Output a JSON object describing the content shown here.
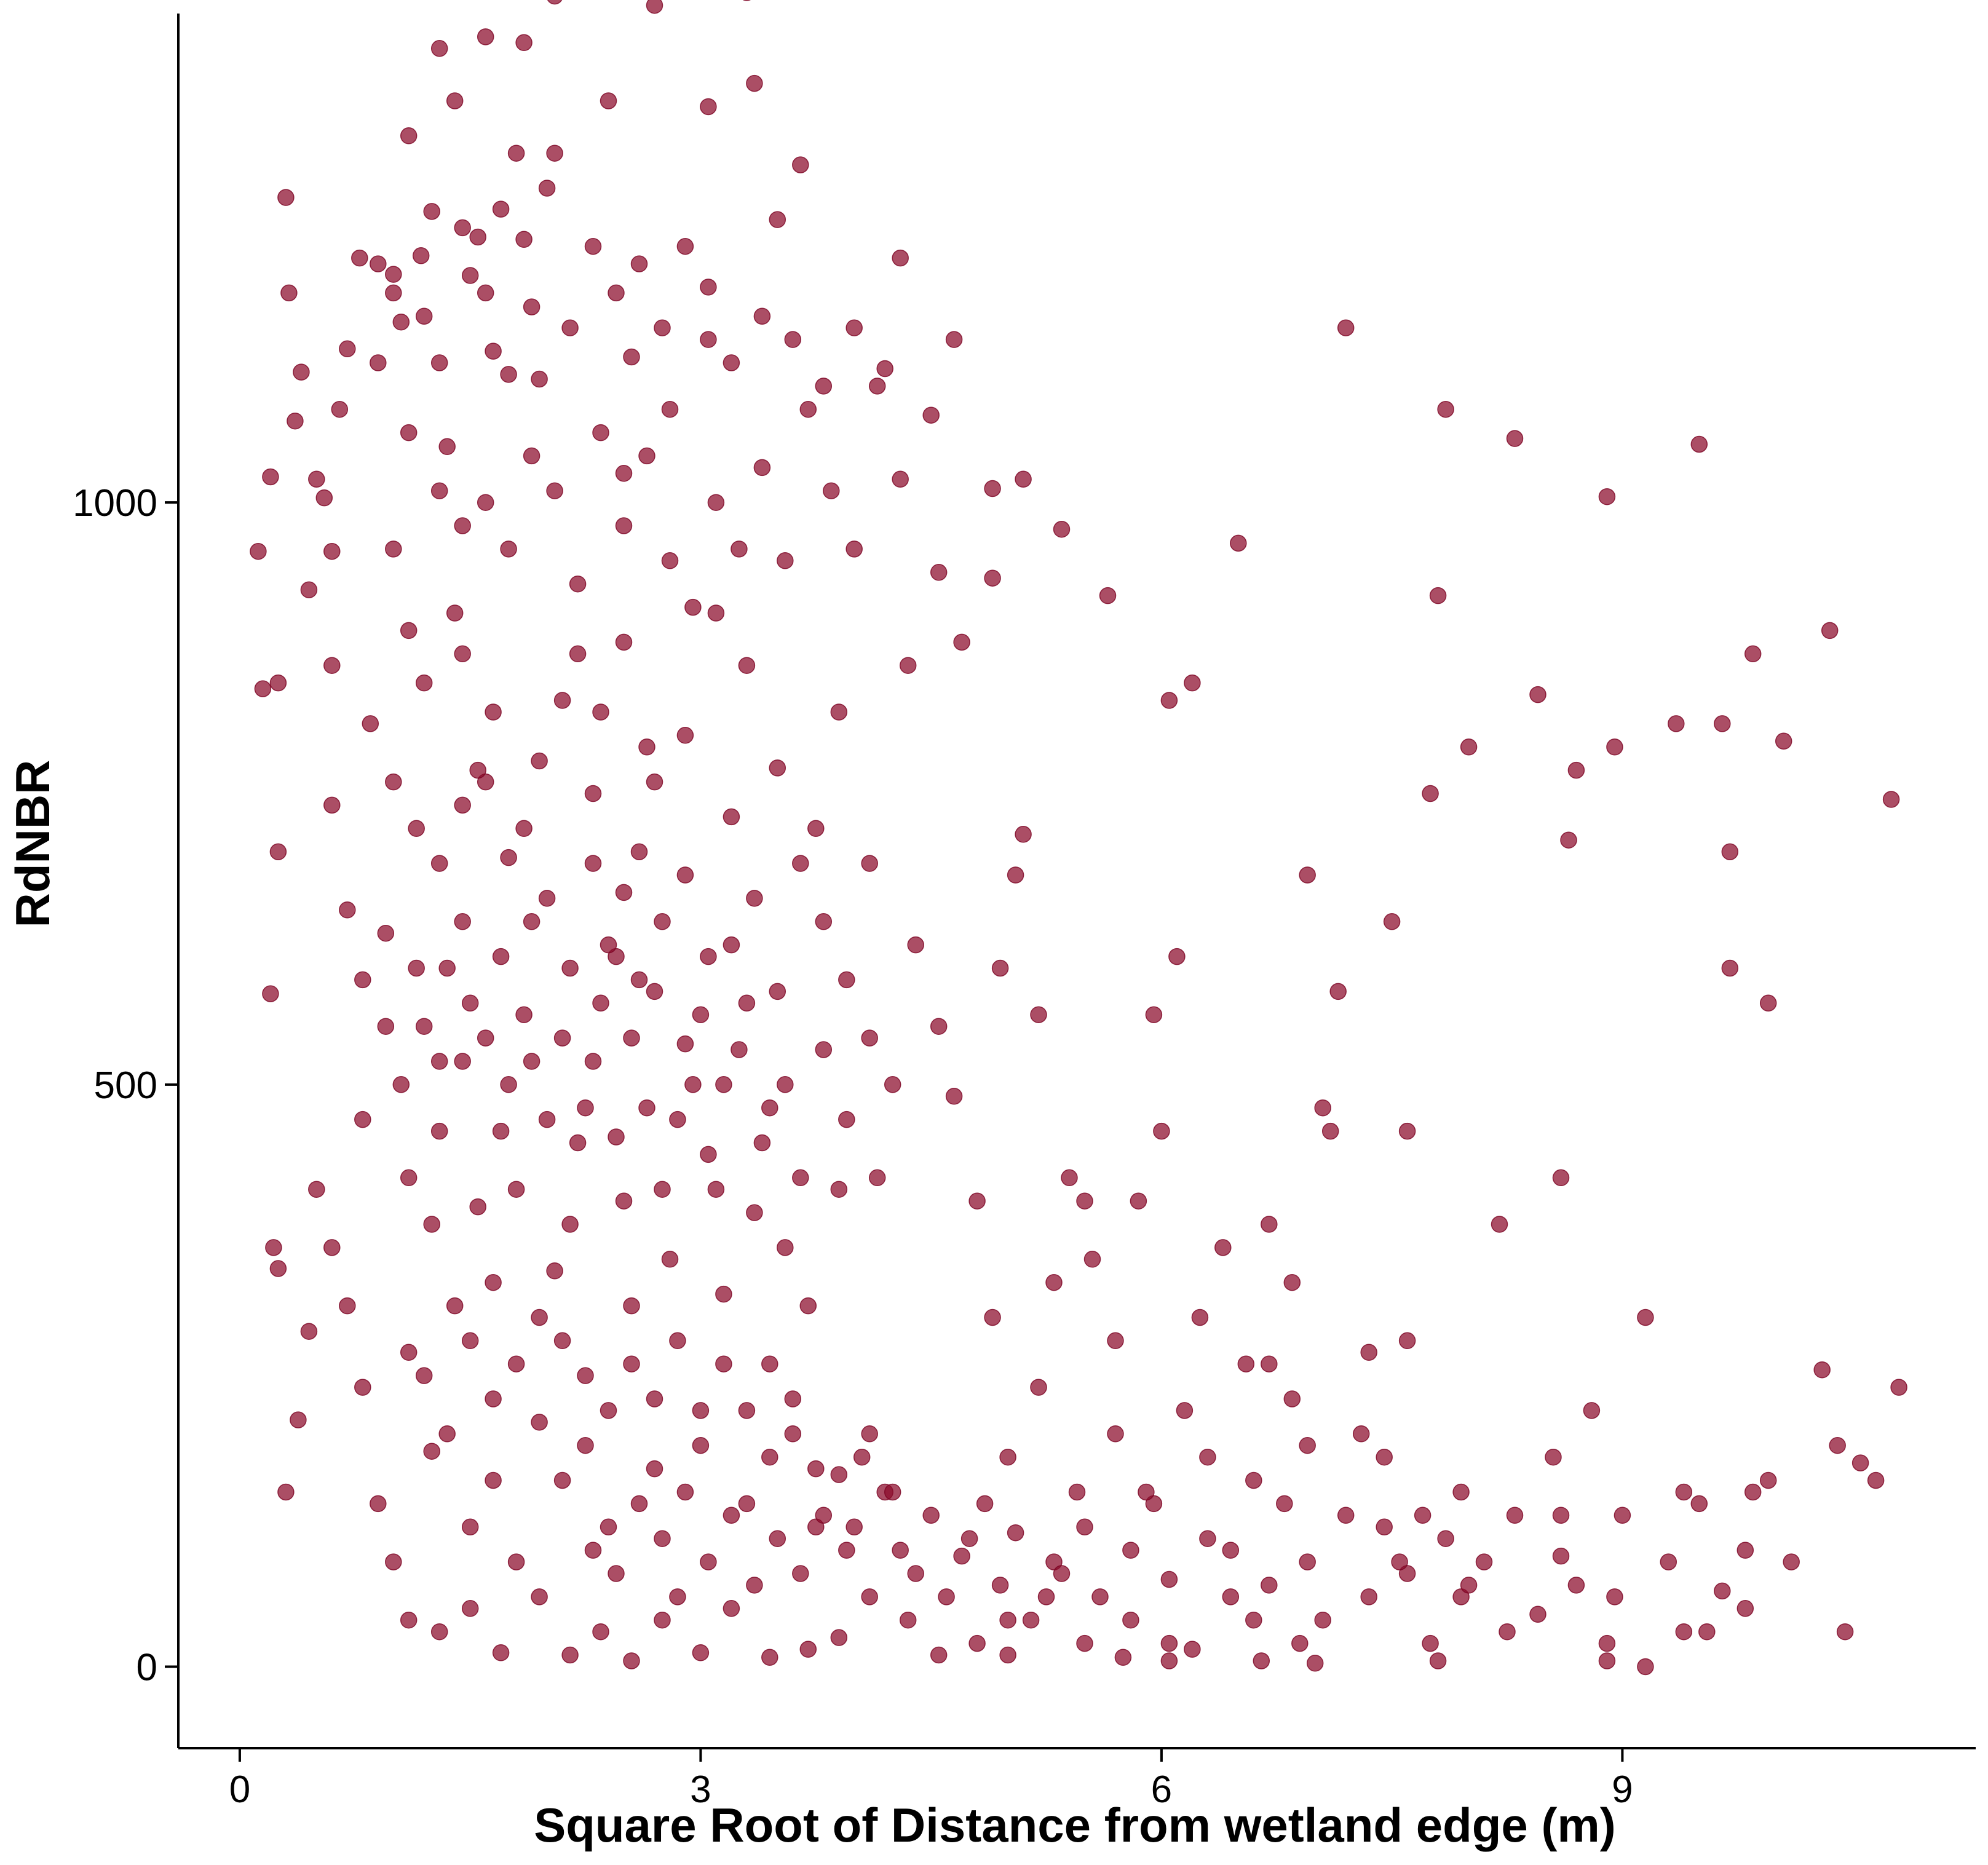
{
  "chart_data": {
    "type": "scatter",
    "xlabel": "Square Root of Distance from wetland edge (m)",
    "ylabel": "RdNBR",
    "xlim": [
      -0.4,
      11.3
    ],
    "ylim": [
      -70,
      1420
    ],
    "x_ticks": [
      0,
      3,
      6,
      9
    ],
    "y_ticks": [
      0,
      500,
      1000
    ],
    "grid": false,
    "legend": "none",
    "point_color": "#8B0A2A",
    "points": [
      [
        0.12,
        958
      ],
      [
        0.15,
        840
      ],
      [
        0.2,
        1022
      ],
      [
        0.25,
        845
      ],
      [
        0.3,
        1262
      ],
      [
        0.32,
        1180
      ],
      [
        0.36,
        1070
      ],
      [
        0.4,
        1112
      ],
      [
        0.45,
        925
      ],
      [
        0.5,
        1020
      ],
      [
        0.55,
        1004
      ],
      [
        0.6,
        958
      ],
      [
        0.25,
        700
      ],
      [
        0.2,
        578
      ],
      [
        0.22,
        360
      ],
      [
        0.25,
        342
      ],
      [
        0.3,
        150
      ],
      [
        0.38,
        212
      ],
      [
        0.45,
        288
      ],
      [
        0.5,
        410
      ],
      [
        0.6,
        860
      ],
      [
        0.65,
        1080
      ],
      [
        0.7,
        1132
      ],
      [
        0.78,
        1210
      ],
      [
        0.9,
        1205
      ],
      [
        1.0,
        1196
      ],
      [
        1.05,
        1155
      ],
      [
        1.1,
        1060
      ],
      [
        1.18,
        1212
      ],
      [
        1.25,
        1250
      ],
      [
        1.3,
        1120
      ],
      [
        1.35,
        1048
      ],
      [
        1.4,
        1345
      ],
      [
        1.45,
        1236
      ],
      [
        1.55,
        1228
      ],
      [
        1.6,
        1180
      ],
      [
        1.65,
        1130
      ],
      [
        1.7,
        1252
      ],
      [
        1.8,
        1300
      ],
      [
        1.85,
        1226
      ],
      [
        1.9,
        1168
      ],
      [
        1.95,
        1106
      ],
      [
        2.0,
        1270
      ],
      [
        2.05,
        1300
      ],
      [
        1.1,
        1315
      ],
      [
        1.3,
        1390
      ],
      [
        1.6,
        1400
      ],
      [
        1.85,
        1395
      ],
      [
        2.05,
        1435
      ],
      [
        2.4,
        1345
      ],
      [
        2.7,
        1427
      ],
      [
        2.8,
        1440
      ],
      [
        3.05,
        1340
      ],
      [
        3.3,
        1438
      ],
      [
        3.35,
        1360
      ],
      [
        3.65,
        1290
      ],
      [
        3.5,
        1243
      ],
      [
        4.3,
        1210
      ],
      [
        4.65,
        1140
      ],
      [
        4.5,
        1075
      ],
      [
        4.9,
        1012
      ],
      [
        5.1,
        1020
      ],
      [
        5.35,
        977
      ],
      [
        5.65,
        920
      ],
      [
        6.05,
        830
      ],
      [
        6.2,
        845
      ],
      [
        6.5,
        965
      ],
      [
        7.2,
        1150
      ],
      [
        0.9,
        1120
      ],
      [
        1.0,
        960
      ],
      [
        1.1,
        890
      ],
      [
        1.2,
        845
      ],
      [
        1.4,
        905
      ],
      [
        1.6,
        760
      ],
      [
        1.75,
        695
      ],
      [
        1.95,
        778
      ],
      [
        2.1,
        830
      ],
      [
        2.3,
        690
      ],
      [
        2.5,
        665
      ],
      [
        2.7,
        760
      ],
      [
        2.9,
        800
      ],
      [
        3.1,
        905
      ],
      [
        3.3,
        860
      ],
      [
        3.5,
        772
      ],
      [
        3.75,
        720
      ],
      [
        3.9,
        820
      ],
      [
        4.1,
        690
      ],
      [
        4.35,
        860
      ],
      [
        4.55,
        940
      ],
      [
        4.7,
        880
      ],
      [
        4.9,
        935
      ],
      [
        5.1,
        715
      ],
      [
        0.6,
        740
      ],
      [
        0.7,
        650
      ],
      [
        0.8,
        590
      ],
      [
        0.95,
        630
      ],
      [
        1.05,
        500
      ],
      [
        1.2,
        550
      ],
      [
        1.3,
        460
      ],
      [
        1.45,
        520
      ],
      [
        1.55,
        395
      ],
      [
        1.7,
        460
      ],
      [
        1.85,
        560
      ],
      [
        2.0,
        470
      ],
      [
        2.15,
        380
      ],
      [
        2.3,
        520
      ],
      [
        2.45,
        455
      ],
      [
        2.6,
        590
      ],
      [
        2.75,
        410
      ],
      [
        2.9,
        535
      ],
      [
        3.05,
        440
      ],
      [
        3.2,
        620
      ],
      [
        3.35,
        390
      ],
      [
        3.55,
        360
      ],
      [
        3.7,
        310
      ],
      [
        3.9,
        410
      ],
      [
        0.6,
        360
      ],
      [
        0.7,
        310
      ],
      [
        0.8,
        240
      ],
      [
        0.9,
        140
      ],
      [
        1.0,
        90
      ],
      [
        1.1,
        270
      ],
      [
        1.25,
        185
      ],
      [
        1.4,
        310
      ],
      [
        1.5,
        120
      ],
      [
        1.65,
        230
      ],
      [
        1.8,
        90
      ],
      [
        1.95,
        300
      ],
      [
        2.1,
        160
      ],
      [
        2.25,
        250
      ],
      [
        2.4,
        120
      ],
      [
        2.55,
        310
      ],
      [
        2.7,
        170
      ],
      [
        2.85,
        60
      ],
      [
        3.0,
        220
      ],
      [
        3.15,
        320
      ],
      [
        3.3,
        140
      ],
      [
        3.45,
        260
      ],
      [
        3.6,
        200
      ],
      [
        3.75,
        120
      ],
      [
        1.1,
        40
      ],
      [
        1.3,
        30
      ],
      [
        1.5,
        50
      ],
      [
        1.7,
        12
      ],
      [
        1.95,
        60
      ],
      [
        2.15,
        10
      ],
      [
        2.35,
        30
      ],
      [
        2.55,
        5
      ],
      [
        2.75,
        40
      ],
      [
        3.0,
        12
      ],
      [
        3.2,
        50
      ],
      [
        3.45,
        8
      ],
      [
        3.7,
        15
      ],
      [
        3.9,
        25
      ],
      [
        4.1,
        60
      ],
      [
        4.35,
        40
      ],
      [
        4.55,
        10
      ],
      [
        4.8,
        20
      ],
      [
        5.0,
        40
      ],
      [
        5.25,
        60
      ],
      [
        5.5,
        20
      ],
      [
        5.75,
        8
      ],
      [
        6.05,
        5
      ],
      [
        6.2,
        15
      ],
      [
        3.9,
        165
      ],
      [
        4.0,
        120
      ],
      [
        4.1,
        200
      ],
      [
        4.2,
        150
      ],
      [
        4.3,
        100
      ],
      [
        4.4,
        80
      ],
      [
        4.5,
        130
      ],
      [
        4.6,
        60
      ],
      [
        4.7,
        95
      ],
      [
        4.85,
        140
      ],
      [
        4.95,
        70
      ],
      [
        5.05,
        115
      ],
      [
        5.15,
        40
      ],
      [
        5.3,
        90
      ],
      [
        5.45,
        150
      ],
      [
        5.6,
        60
      ],
      [
        5.7,
        200
      ],
      [
        5.8,
        100
      ],
      [
        5.95,
        140
      ],
      [
        6.05,
        75
      ],
      [
        6.15,
        220
      ],
      [
        6.3,
        110
      ],
      [
        6.45,
        60
      ],
      [
        6.6,
        160
      ],
      [
        6.7,
        70
      ],
      [
        6.8,
        140
      ],
      [
        6.95,
        90
      ],
      [
        7.05,
        40
      ],
      [
        7.2,
        130
      ],
      [
        7.35,
        60
      ],
      [
        7.45,
        120
      ],
      [
        7.6,
        80
      ],
      [
        7.75,
        20
      ],
      [
        7.85,
        110
      ],
      [
        7.95,
        60
      ],
      [
        8.1,
        90
      ],
      [
        8.3,
        130
      ],
      [
        8.45,
        45
      ],
      [
        8.6,
        95
      ],
      [
        8.7,
        70
      ],
      [
        8.9,
        20
      ],
      [
        9.0,
        130
      ],
      [
        9.15,
        0
      ],
      [
        9.3,
        90
      ],
      [
        9.5,
        140
      ],
      [
        9.65,
        65
      ],
      [
        9.8,
        100
      ],
      [
        9.95,
        160
      ],
      [
        4.4,
        620
      ],
      [
        4.55,
        550
      ],
      [
        4.65,
        490
      ],
      [
        4.8,
        400
      ],
      [
        4.95,
        600
      ],
      [
        5.05,
        680
      ],
      [
        5.2,
        560
      ],
      [
        5.4,
        420
      ],
      [
        5.55,
        350
      ],
      [
        5.7,
        280
      ],
      [
        5.85,
        400
      ],
      [
        5.95,
        560
      ],
      [
        6.1,
        610
      ],
      [
        6.25,
        300
      ],
      [
        6.4,
        360
      ],
      [
        6.55,
        260
      ],
      [
        6.7,
        380
      ],
      [
        6.85,
        330
      ],
      [
        6.95,
        680
      ],
      [
        7.05,
        480
      ],
      [
        7.15,
        580
      ],
      [
        7.35,
        270
      ],
      [
        7.5,
        640
      ],
      [
        7.6,
        460
      ],
      [
        7.75,
        750
      ],
      [
        7.85,
        1080
      ],
      [
        7.8,
        920
      ],
      [
        8.0,
        790
      ],
      [
        8.2,
        380
      ],
      [
        8.3,
        1055
      ],
      [
        8.45,
        835
      ],
      [
        8.6,
        420
      ],
      [
        8.65,
        710
      ],
      [
        8.7,
        770
      ],
      [
        8.95,
        790
      ],
      [
        8.9,
        1005
      ],
      [
        9.15,
        300
      ],
      [
        9.35,
        810
      ],
      [
        9.5,
        1050
      ],
      [
        9.65,
        810
      ],
      [
        9.7,
        700
      ],
      [
        9.85,
        870
      ],
      [
        9.95,
        570
      ],
      [
        10.05,
        795
      ],
      [
        10.3,
        255
      ],
      [
        10.35,
        890
      ],
      [
        10.75,
        745
      ],
      [
        10.8,
        240
      ],
      [
        9.7,
        600
      ],
      [
        10.4,
        190
      ],
      [
        10.45,
        30
      ],
      [
        10.65,
        160
      ],
      [
        10.55,
        175
      ],
      [
        9.4,
        30
      ],
      [
        8.9,
        5
      ],
      [
        7.8,
        5
      ],
      [
        7.0,
        3
      ],
      [
        6.65,
        5
      ],
      [
        5.0,
        10
      ],
      [
        9.85,
        150
      ],
      [
        8.8,
        220
      ],
      [
        7.95,
        150
      ],
      [
        6.95,
        190
      ],
      [
        6.45,
        100
      ],
      [
        5.9,
        150
      ],
      [
        5.5,
        120
      ],
      [
        4.75,
        110
      ],
      [
        5.2,
        240
      ],
      [
        6.6,
        40
      ],
      [
        7.3,
        200
      ],
      [
        7.6,
        280
      ],
      [
        8.55,
        180
      ],
      [
        1.3,
        1010
      ],
      [
        1.45,
        980
      ],
      [
        1.6,
        1000
      ],
      [
        1.75,
        960
      ],
      [
        1.9,
        1040
      ],
      [
        2.05,
        1010
      ],
      [
        2.2,
        930
      ],
      [
        2.35,
        1060
      ],
      [
        2.5,
        980
      ],
      [
        2.65,
        1040
      ],
      [
        2.8,
        950
      ],
      [
        2.95,
        910
      ],
      [
        3.1,
        1000
      ],
      [
        3.25,
        960
      ],
      [
        3.4,
        1030
      ],
      [
        3.55,
        950
      ],
      [
        3.7,
        1080
      ],
      [
        3.85,
        1010
      ],
      [
        4.0,
        960
      ],
      [
        4.15,
        1100
      ],
      [
        4.3,
        1020
      ],
      [
        2.55,
        1125
      ],
      [
        2.8,
        1080
      ],
      [
        3.05,
        1140
      ],
      [
        0.85,
        810
      ],
      [
        1.0,
        760
      ],
      [
        1.15,
        720
      ],
      [
        1.3,
        690
      ],
      [
        1.45,
        640
      ],
      [
        1.55,
        770
      ],
      [
        1.7,
        610
      ],
      [
        1.85,
        720
      ],
      [
        2.0,
        660
      ],
      [
        2.15,
        600
      ],
      [
        2.3,
        750
      ],
      [
        2.45,
        610
      ],
      [
        2.6,
        700
      ],
      [
        2.75,
        640
      ],
      [
        2.9,
        680
      ],
      [
        3.05,
        610
      ],
      [
        3.2,
        730
      ],
      [
        3.35,
        660
      ],
      [
        3.5,
        580
      ],
      [
        3.65,
        690
      ],
      [
        3.8,
        640
      ],
      [
        3.95,
        590
      ],
      [
        4.1,
        540
      ],
      [
        4.25,
        500
      ],
      [
        0.8,
        470
      ],
      [
        0.95,
        550
      ],
      [
        1.1,
        420
      ],
      [
        1.25,
        380
      ],
      [
        1.35,
        600
      ],
      [
        1.5,
        570
      ],
      [
        1.65,
        330
      ],
      [
        1.8,
        410
      ],
      [
        1.9,
        520
      ],
      [
        2.05,
        340
      ],
      [
        2.2,
        450
      ],
      [
        2.35,
        570
      ],
      [
        2.5,
        400
      ],
      [
        2.65,
        480
      ],
      [
        2.8,
        350
      ],
      [
        2.95,
        500
      ],
      [
        3.1,
        410
      ],
      [
        3.25,
        530
      ],
      [
        3.4,
        450
      ],
      [
        3.55,
        500
      ],
      [
        3.65,
        420
      ],
      [
        3.8,
        530
      ],
      [
        3.95,
        470
      ],
      [
        4.15,
        420
      ],
      [
        1.15,
        600
      ],
      [
        1.3,
        520
      ],
      [
        1.45,
        740
      ],
      [
        1.6,
        540
      ],
      [
        1.75,
        500
      ],
      [
        1.9,
        640
      ],
      [
        2.1,
        540
      ],
      [
        2.25,
        480
      ],
      [
        2.4,
        620
      ],
      [
        2.55,
        540
      ],
      [
        2.7,
        580
      ],
      [
        2.85,
        470
      ],
      [
        3.0,
        560
      ],
      [
        3.15,
        500
      ],
      [
        3.3,
        570
      ],
      [
        3.45,
        480
      ],
      [
        1.2,
        250
      ],
      [
        1.35,
        200
      ],
      [
        1.5,
        280
      ],
      [
        1.65,
        160
      ],
      [
        1.8,
        260
      ],
      [
        1.95,
        210
      ],
      [
        2.1,
        280
      ],
      [
        2.25,
        190
      ],
      [
        2.4,
        220
      ],
      [
        2.55,
        260
      ],
      [
        2.7,
        230
      ],
      [
        2.85,
        280
      ],
      [
        3.0,
        190
      ],
      [
        3.15,
        260
      ],
      [
        3.3,
        220
      ],
      [
        3.45,
        180
      ],
      [
        3.6,
        230
      ],
      [
        3.75,
        170
      ],
      [
        2.3,
        100
      ],
      [
        2.45,
        80
      ],
      [
        2.6,
        140
      ],
      [
        2.75,
        110
      ],
      [
        2.9,
        150
      ],
      [
        3.05,
        90
      ],
      [
        3.2,
        130
      ],
      [
        3.35,
        70
      ],
      [
        3.5,
        110
      ],
      [
        3.65,
        80
      ],
      [
        3.8,
        130
      ],
      [
        3.95,
        100
      ],
      [
        4.05,
        180
      ],
      [
        4.25,
        150
      ],
      [
        1.0,
        1180
      ],
      [
        1.2,
        1160
      ],
      [
        1.5,
        1195
      ],
      [
        1.75,
        1110
      ],
      [
        2.15,
        1150
      ],
      [
        2.3,
        1220
      ],
      [
        2.45,
        1180
      ],
      [
        2.6,
        1205
      ],
      [
        2.75,
        1150
      ],
      [
        2.9,
        1220
      ],
      [
        3.05,
        1185
      ],
      [
        3.2,
        1120
      ],
      [
        3.4,
        1160
      ],
      [
        3.6,
        1140
      ],
      [
        3.8,
        1100
      ],
      [
        4.0,
        1150
      ],
      [
        4.2,
        1115
      ],
      [
        2.5,
        1025
      ],
      [
        2.2,
        870
      ],
      [
        2.35,
        820
      ],
      [
        2.5,
        880
      ],
      [
        2.65,
        790
      ],
      [
        1.45,
        870
      ],
      [
        1.65,
        820
      ],
      [
        5.5,
        400
      ],
      [
        5.3,
        330
      ],
      [
        6.0,
        460
      ],
      [
        6.7,
        260
      ],
      [
        7.45,
        180
      ],
      [
        8.0,
        70
      ],
      [
        8.6,
        130
      ],
      [
        9.4,
        150
      ],
      [
        9.8,
        50
      ],
      [
        10.1,
        90
      ],
      [
        7.1,
        460
      ],
      [
        6.3,
        180
      ],
      [
        5.0,
        180
      ],
      [
        4.9,
        300
      ],
      [
        5.8,
        40
      ],
      [
        6.9,
        20
      ],
      [
        7.55,
        90
      ],
      [
        8.25,
        30
      ],
      [
        8.95,
        60
      ],
      [
        9.55,
        30
      ],
      [
        6.85,
        230
      ],
      [
        7.7,
        130
      ],
      [
        6.05,
        20
      ],
      [
        5.35,
        80
      ]
    ]
  }
}
